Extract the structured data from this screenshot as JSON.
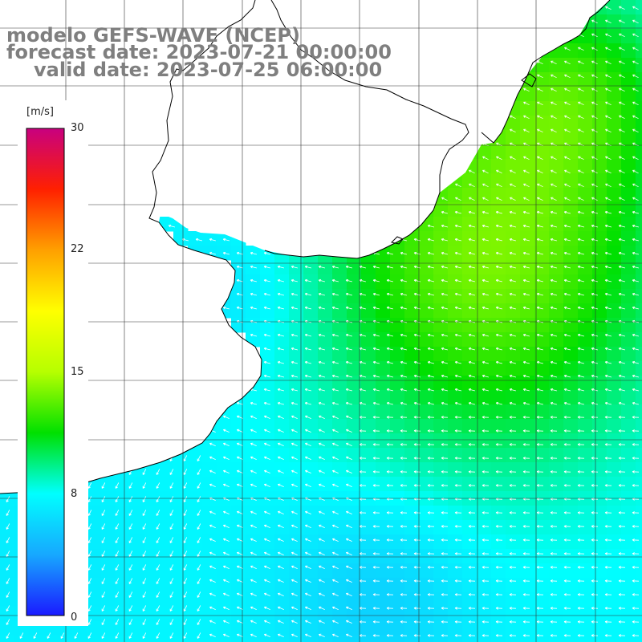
{
  "title": {
    "line1": "modelo GEFS-WAVE (NCEP)",
    "line2": "forecast date: 2023-07-21 00:00:00",
    "line3": "valid date: 2023-07-25 06:00:00"
  },
  "colorbar": {
    "unit": "[m/s]",
    "ticks": [
      "0",
      "8",
      "15",
      "22",
      "30"
    ],
    "min": 0,
    "max": 30,
    "stops": [
      "#1a1aff",
      "#17a8ff",
      "#00ffff",
      "#00e000",
      "#b6ff00",
      "#ffff00",
      "#ffa000",
      "#ff2000",
      "#c8007f"
    ]
  },
  "map": {
    "variable": "wind speed",
    "units": "m/s",
    "grid_lines": "on",
    "coastline_color": "#000000",
    "arrow_color": "#ffffff",
    "ocean_speed_range": [
      6,
      14
    ]
  }
}
